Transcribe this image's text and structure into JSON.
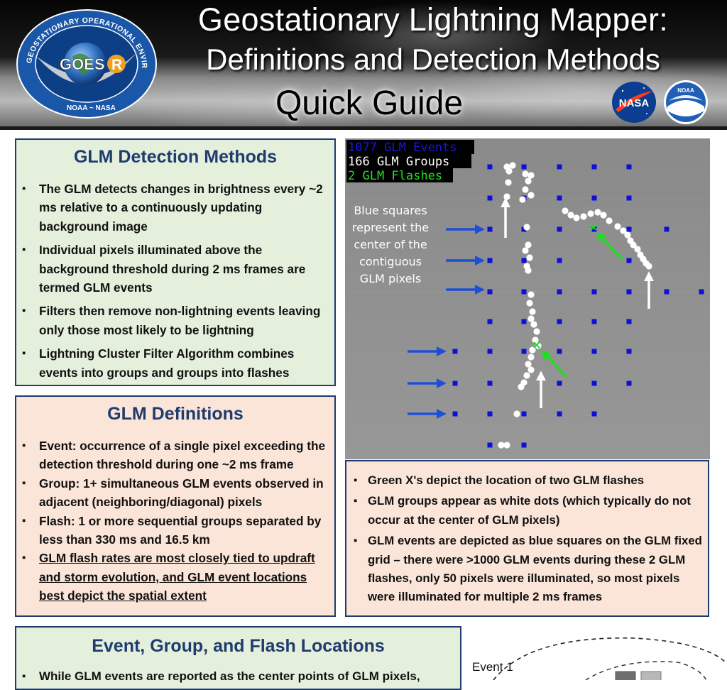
{
  "header": {
    "title_line1": "Geostationary Lightning Mapper:",
    "title_line2": "Definitions and Detection Methods",
    "title_line3": "Quick Guide",
    "seal": {
      "ring_text": "GEOSTATIONARY OPERATIONAL ENVIRONMENTAL SATELLITE-R SERIES",
      "center_text_1": "GOES",
      "center_text_2": "R",
      "bottom_text": "NOAA ~ NASA"
    },
    "nasa_logo_text": "NASA",
    "noaa_logo_text": "NOAA"
  },
  "methods": {
    "title": "GLM Detection Methods",
    "items": [
      "The GLM detects changes in brightness every ~2 ms relative to a continuously updating background image",
      "Individual pixels illuminated above the background threshold during 2 ms frames are termed GLM events",
      "Filters then remove non-lightning events leaving only those most likely to be lightning",
      "Lightning Cluster Filter Algorithm combines events into groups and groups into flashes"
    ]
  },
  "definitions": {
    "title": "GLM Definitions",
    "items": [
      "Event: occurrence of a single pixel exceeding the detection threshold during one ~2 ms frame",
      "Group: 1+ simultaneous GLM events observed in adjacent (neighboring/diagonal) pixels",
      "Flash: 1 or more sequential groups separated by less than 330 ms and 16.5 km",
      "GLM flash rates are most closely tied to updraft and storm evolution, and GLM event locations best depict the spatial extent"
    ]
  },
  "figure": {
    "legend_events": "1077 GLM Events",
    "legend_groups": "166 GLM Groups",
    "legend_flashes": "2 GLM Flashes",
    "annotation": [
      "Blue squares",
      "represent the",
      "center of the",
      "contiguous",
      "GLM pixels"
    ],
    "colors": {
      "events": "#0d10d8",
      "groups": "#ffffff",
      "flashes": "#22dd22",
      "background": "#8f8f8f"
    }
  },
  "caption": {
    "items": [
      "Green X's depict the location of two GLM flashes",
      "GLM groups appear as white dots (which typically do not occur at the center of GLM pixels)",
      "GLM events are depicted as blue squares on the GLM fixed grid – there were >1000 GLM events during these 2 GLM flashes, only 50 pixels were illuminated, so most pixels were illuminated for multiple 2 ms frames"
    ]
  },
  "locations": {
    "title": "Event, Group, and Flash Locations",
    "items": [
      "While GLM events are reported as the center points of GLM pixels,"
    ]
  },
  "event_diagram": {
    "label": "Event 1"
  }
}
